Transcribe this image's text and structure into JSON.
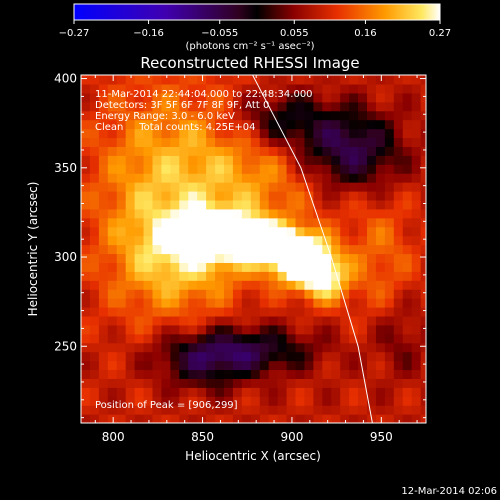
{
  "chart_data": {
    "type": "heatmap",
    "title": "Reconstructed RHESSI Image",
    "xlabel": "Heliocentric X (arcsec)",
    "ylabel": "Heliocentric Y (arcsec)",
    "xlim": [
      782,
      975
    ],
    "ylim": [
      207,
      402
    ],
    "x_ticks": [
      800,
      850,
      900,
      950
    ],
    "y_ticks": [
      250,
      300,
      350,
      400
    ],
    "colorbar": {
      "range": [
        -0.27,
        0.27
      ],
      "ticks": [
        -0.27,
        -0.16,
        -0.055,
        0.055,
        0.16,
        0.27
      ],
      "tick_labels": [
        "−0.27",
        "−0.16",
        "−0.055",
        "0.055",
        "0.16",
        "0.27"
      ],
      "unit": "(photons cm⁻² s⁻¹ asec⁻²)"
    },
    "annotations": [
      "11-Mar-2014 22:44:04.000 to 22:48:34.000",
      "Detectors: 3F 5F 6F 7F 8F 9F, Att 0",
      "Energy Range: 3.0 - 6.0 keV",
      "Clean     Total counts: 4.25E+04"
    ],
    "peak_label": "Position of Peak = [906,299]",
    "peak_position": [
      906,
      299
    ],
    "total_counts": "4.25E+04",
    "sources": [
      {
        "x": 905,
        "y": 299,
        "sx": 12,
        "sy": 9,
        "amp": 0.27
      },
      {
        "x": 885,
        "y": 308,
        "sx": 14,
        "sy": 7,
        "amp": 0.2
      },
      {
        "x": 860,
        "y": 313,
        "sx": 18,
        "sy": 9,
        "amp": 0.17
      },
      {
        "x": 918,
        "y": 287,
        "sx": 10,
        "sy": 9,
        "amp": 0.15
      },
      {
        "x": 842,
        "y": 300,
        "sx": 25,
        "sy": 20,
        "amp": 0.1
      },
      {
        "x": 870,
        "y": 350,
        "sx": 40,
        "sy": 30,
        "amp": 0.1
      },
      {
        "x": 820,
        "y": 330,
        "sx": 25,
        "sy": 50,
        "amp": 0.07
      },
      {
        "x": 950,
        "y": 300,
        "sx": 14,
        "sy": 25,
        "amp": 0.06
      },
      {
        "x": 893,
        "y": 377,
        "sx": 20,
        "sy": 12,
        "amp": -0.13
      },
      {
        "x": 932,
        "y": 360,
        "sx": 20,
        "sy": 16,
        "amp": -0.17
      },
      {
        "x": 870,
        "y": 248,
        "sx": 28,
        "sy": 9,
        "amp": -0.14
      },
      {
        "x": 850,
        "y": 238,
        "sx": 18,
        "sy": 10,
        "amp": -0.08
      },
      {
        "x": 960,
        "y": 255,
        "sx": 10,
        "sy": 15,
        "amp": -0.05
      }
    ],
    "limb_curve": [
      [
        878,
        402
      ],
      [
        905,
        350
      ],
      [
        922,
        300
      ],
      [
        937,
        250
      ],
      [
        945,
        207
      ]
    ]
  },
  "footer": {
    "date": "12-Mar-2014 02:06"
  },
  "colors": {
    "axes": "#ffffff",
    "limb": "#ffffff"
  }
}
